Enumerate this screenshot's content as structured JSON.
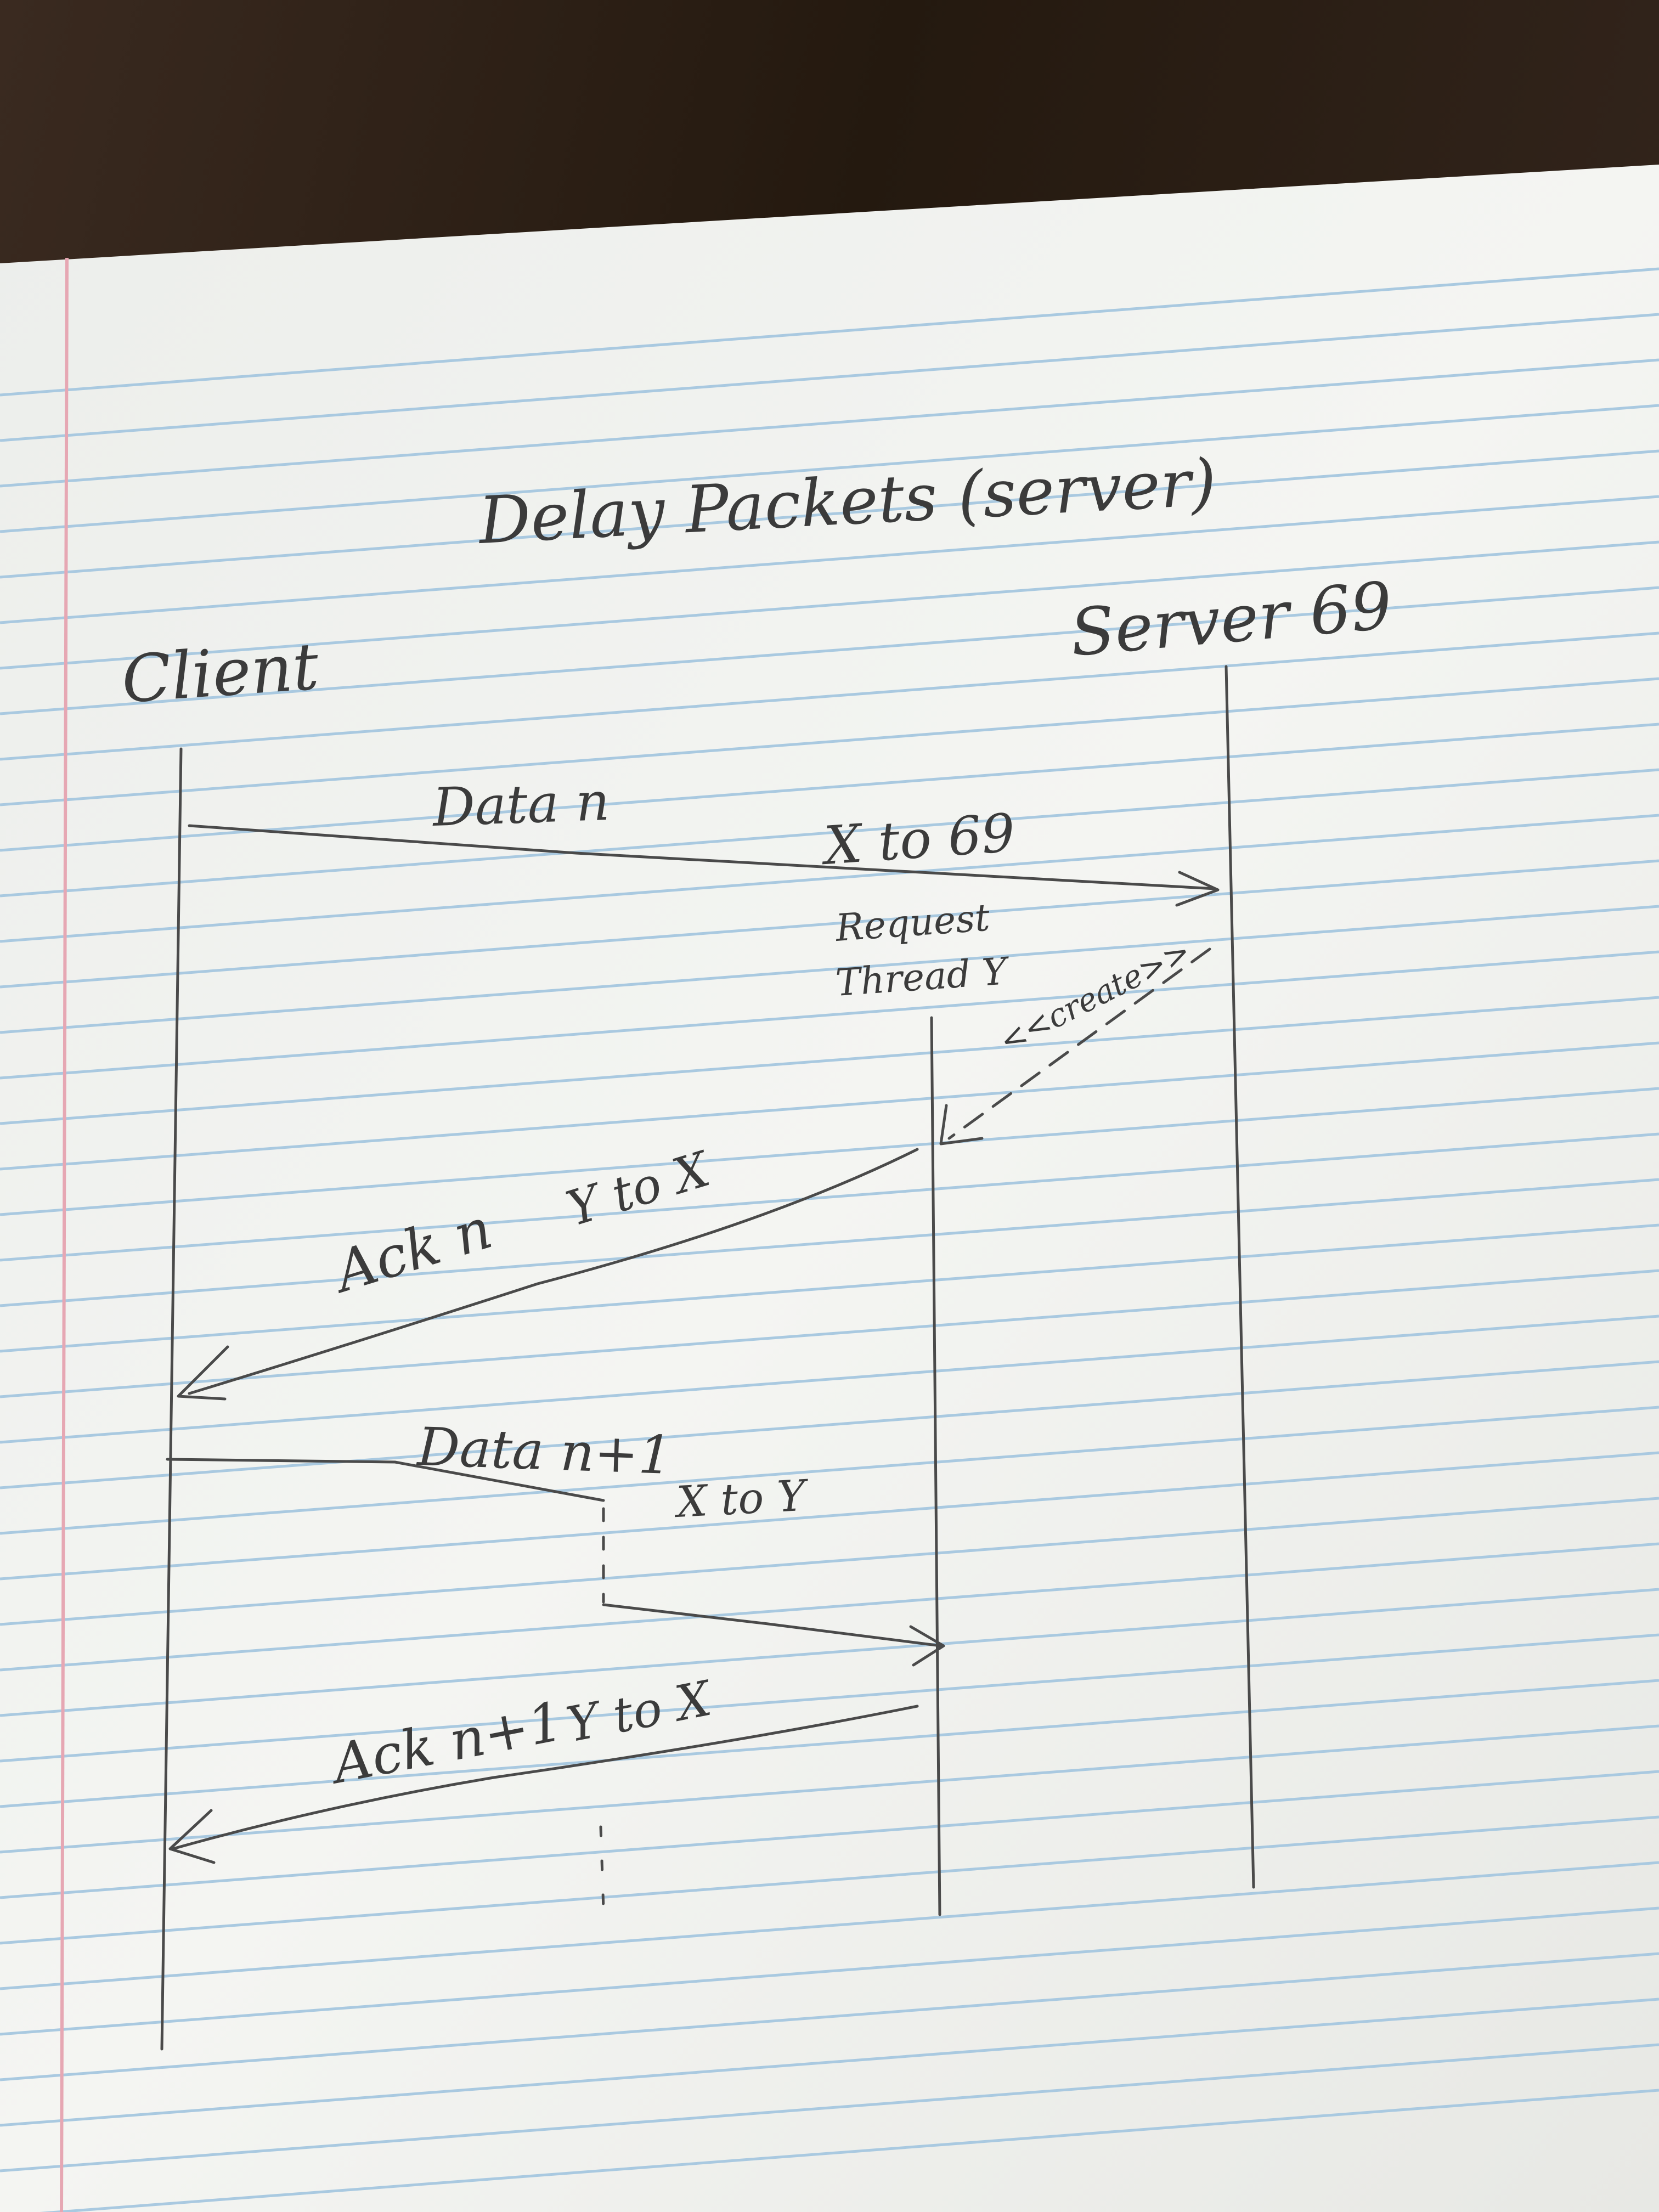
{
  "title": "Delay Packets (server)",
  "participants": {
    "client": "Client",
    "server": "Server 69",
    "request_thread_line1": "Request",
    "request_thread_line2": "Thread Y"
  },
  "messages": {
    "data_n": "Data n",
    "x_to_69": "X to 69",
    "create": "<<create>>",
    "ack_n": "Ack n",
    "y_to_x_1": "Y to X",
    "data_n1": "Data n+1",
    "x_to_y": "X to Y",
    "ack_n1": "Ack n+1",
    "y_to_x_2": "Y to X"
  },
  "colors": {
    "paper": "#f3f4f1",
    "rule_line": "#9fc3dd",
    "margin_line": "#e6a7b3",
    "pencil": "#4a4a4a",
    "wood": "#2b1f18"
  }
}
